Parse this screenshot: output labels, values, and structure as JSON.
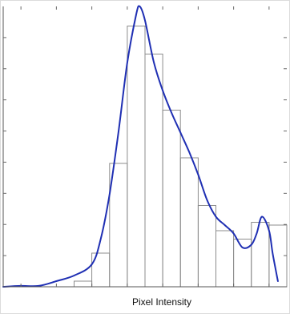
{
  "chart_data": {
    "type": "bar",
    "xlabel": "Pixel Intensity",
    "ylabel": "",
    "title": "",
    "grid": false,
    "xlim": [
      0,
      16
    ],
    "ylim": [
      0,
      1
    ],
    "bins": [
      {
        "x0": 0,
        "x1": 1,
        "value": 0.0
      },
      {
        "x0": 1,
        "x1": 2,
        "value": 0.0
      },
      {
        "x0": 2,
        "x1": 3,
        "value": 0.0
      },
      {
        "x0": 3,
        "x1": 4,
        "value": 0.0
      },
      {
        "x0": 4,
        "x1": 5,
        "value": 0.02
      },
      {
        "x0": 5,
        "x1": 6,
        "value": 0.12
      },
      {
        "x0": 6,
        "x1": 7,
        "value": 0.44
      },
      {
        "x0": 7,
        "x1": 8,
        "value": 0.93
      },
      {
        "x0": 8,
        "x1": 9,
        "value": 0.83
      },
      {
        "x0": 9,
        "x1": 10,
        "value": 0.63
      },
      {
        "x0": 10,
        "x1": 11,
        "value": 0.46
      },
      {
        "x0": 11,
        "x1": 12,
        "value": 0.29
      },
      {
        "x0": 12,
        "x1": 13,
        "value": 0.2
      },
      {
        "x0": 13,
        "x1": 14,
        "value": 0.17
      },
      {
        "x0": 14,
        "x1": 15,
        "value": 0.23
      },
      {
        "x0": 15,
        "x1": 16,
        "value": 0.22
      }
    ],
    "density_curve": {
      "color": "#1f2fb3",
      "points": [
        [
          0,
          0.0
        ],
        [
          1,
          0.003
        ],
        [
          2,
          0.003
        ],
        [
          3,
          0.02
        ],
        [
          4,
          0.04
        ],
        [
          5,
          0.08
        ],
        [
          5.5,
          0.17
        ],
        [
          6,
          0.33
        ],
        [
          6.5,
          0.55
        ],
        [
          7,
          0.8
        ],
        [
          7.5,
          0.97
        ],
        [
          7.7,
          1.0
        ],
        [
          8,
          0.95
        ],
        [
          8.5,
          0.8
        ],
        [
          9,
          0.7
        ],
        [
          9.5,
          0.62
        ],
        [
          10,
          0.55
        ],
        [
          10.5,
          0.48
        ],
        [
          11,
          0.4
        ],
        [
          11.5,
          0.31
        ],
        [
          12,
          0.25
        ],
        [
          12.5,
          0.22
        ],
        [
          13,
          0.19
        ],
        [
          13.5,
          0.14
        ],
        [
          14,
          0.15
        ],
        [
          14.3,
          0.19
        ],
        [
          14.6,
          0.25
        ],
        [
          15,
          0.2
        ],
        [
          15.2,
          0.12
        ],
        [
          15.5,
          0.02
        ]
      ]
    }
  }
}
